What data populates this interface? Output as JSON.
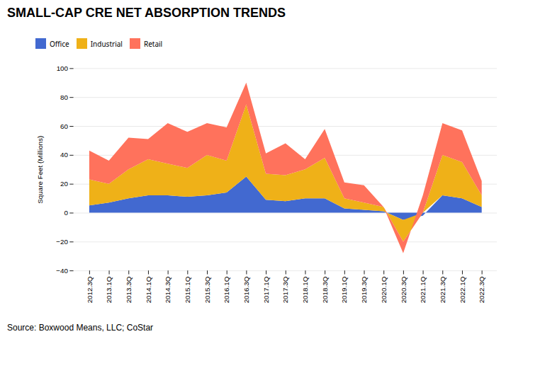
{
  "chart_data": {
    "type": "area",
    "stacked": true,
    "title": "SMALL-CAP CRE NET ABSORPTION TRENDS",
    "ylabel": "Square Feet (Millions)",
    "annotations": [
      "Source: Boxwood Means, LLC; CoStar"
    ],
    "ylim": [
      -40,
      100
    ],
    "yticks": [
      -40,
      -20,
      0,
      20,
      40,
      60,
      80,
      100
    ],
    "grid": true,
    "legend": "top",
    "categories": [
      "2012.3Q",
      "2013.1Q",
      "2013.3Q",
      "2014.1Q",
      "2014.3Q",
      "2015.1Q",
      "2015.3Q",
      "2016.1Q",
      "2016.3Q",
      "2017.1Q",
      "2017.3Q",
      "2018.1Q",
      "2018.3Q",
      "2019.1Q",
      "2019.3Q",
      "2020.1Q",
      "2020.3Q",
      "2021.1Q",
      "2021.3Q",
      "2022.1Q",
      "2022.3Q"
    ],
    "series": [
      {
        "name": "Office",
        "values": [
          5,
          7,
          10,
          12,
          12,
          11,
          12,
          14,
          25,
          9,
          8,
          10,
          10,
          3,
          2,
          1,
          -5,
          -2,
          12,
          10,
          4
        ]
      },
      {
        "name": "Industrial",
        "values": [
          18,
          13,
          20,
          25,
          22,
          20,
          28,
          22,
          50,
          18,
          18,
          20,
          28,
          7,
          5,
          3,
          -15,
          0,
          28,
          25,
          8
        ]
      },
      {
        "name": "Retail",
        "values": [
          20,
          16,
          22,
          14,
          28,
          25,
          22,
          23,
          15,
          14,
          22,
          7,
          20,
          11,
          12,
          0,
          -8,
          12,
          22,
          22,
          10
        ]
      }
    ]
  }
}
